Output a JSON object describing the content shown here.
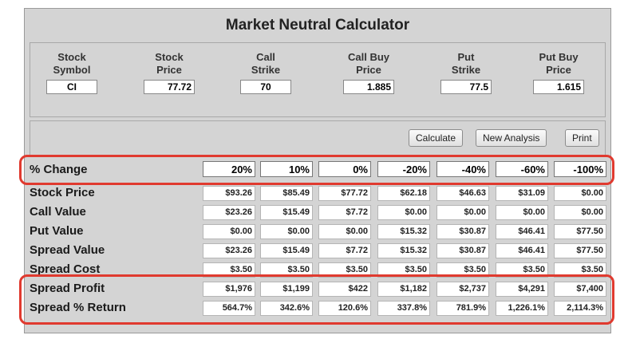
{
  "title": "Market Neutral Calculator",
  "inputs": [
    {
      "key": "stock_symbol",
      "label1": "Stock",
      "label2": "Symbol",
      "value": "CI"
    },
    {
      "key": "stock_price",
      "label1": "Stock",
      "label2": "Price",
      "value": "77.72"
    },
    {
      "key": "call_strike",
      "label1": "Call",
      "label2": "Strike",
      "value": "70"
    },
    {
      "key": "call_buy_price",
      "label1": "Call Buy",
      "label2": "Price",
      "value": "1.885"
    },
    {
      "key": "put_strike",
      "label1": "Put",
      "label2": "Strike",
      "value": "77.5"
    },
    {
      "key": "put_buy_price",
      "label1": "Put Buy",
      "label2": "Price",
      "value": "1.615"
    }
  ],
  "buttons": {
    "calculate": "Calculate",
    "new_analysis": "New Analysis",
    "print": "Print"
  },
  "table": {
    "pct_label": "% Change",
    "pct_values": [
      "20%",
      "10%",
      "0%",
      "-20%",
      "-40%",
      "-60%",
      "-100%"
    ],
    "rows": [
      {
        "name": "stock-price",
        "label": "Stock Price",
        "values": [
          "$93.26",
          "$85.49",
          "$77.72",
          "$62.18",
          "$46.63",
          "$31.09",
          "$0.00"
        ]
      },
      {
        "name": "call-value",
        "label": "Call Value",
        "values": [
          "$23.26",
          "$15.49",
          "$7.72",
          "$0.00",
          "$0.00",
          "$0.00",
          "$0.00"
        ]
      },
      {
        "name": "put-value",
        "label": "Put Value",
        "values": [
          "$0.00",
          "$0.00",
          "$0.00",
          "$15.32",
          "$30.87",
          "$46.41",
          "$77.50"
        ]
      },
      {
        "name": "spread-value",
        "label": "Spread Value",
        "values": [
          "$23.26",
          "$15.49",
          "$7.72",
          "$15.32",
          "$30.87",
          "$46.41",
          "$77.50"
        ]
      },
      {
        "name": "spread-cost",
        "label": "Spread Cost",
        "values": [
          "$3.50",
          "$3.50",
          "$3.50",
          "$3.50",
          "$3.50",
          "$3.50",
          "$3.50"
        ]
      },
      {
        "name": "spread-profit",
        "label": "Spread Profit",
        "values": [
          "$1,976",
          "$1,199",
          "$422",
          "$1,182",
          "$2,737",
          "$4,291",
          "$7,400"
        ]
      },
      {
        "name": "spread-return",
        "label": "Spread % Return",
        "values": [
          "564.7%",
          "342.6%",
          "120.6%",
          "337.8%",
          "781.9%",
          "1,226.1%",
          "2,114.3%"
        ]
      }
    ]
  },
  "colors": {
    "highlight": "#e03a2f",
    "panel": "#d4d4d4"
  }
}
